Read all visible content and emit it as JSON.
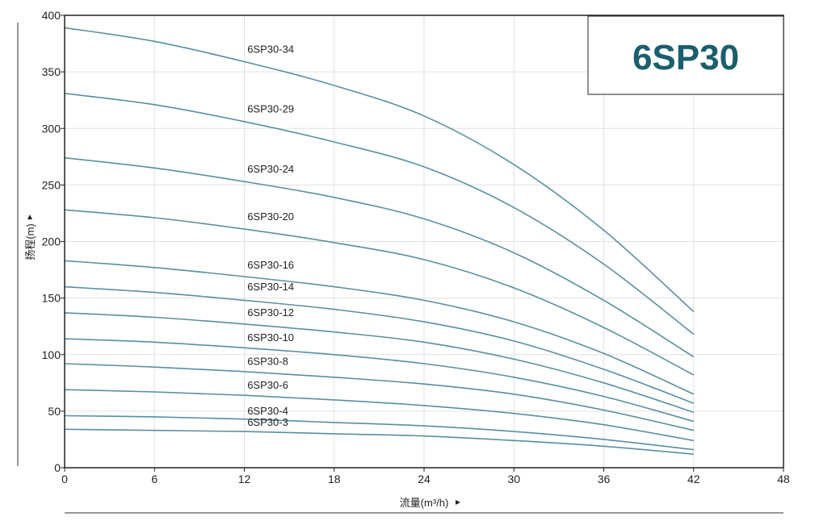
{
  "chart_data": {
    "type": "line",
    "title": "6SP30",
    "xlabel": "流量(m³/h)",
    "ylabel": "扬程(m)",
    "xlim": [
      0,
      48
    ],
    "ylim": [
      0,
      400
    ],
    "x_ticks": [
      0,
      6,
      12,
      18,
      24,
      30,
      36,
      42,
      48
    ],
    "y_ticks": [
      0,
      50,
      100,
      150,
      200,
      250,
      300,
      350,
      400
    ],
    "grid": true,
    "colors": {
      "line": "#5a8fa0",
      "grid": "#e0e0e0",
      "axis": "#222222",
      "title": "#1b5e6e"
    },
    "x": [
      0,
      6,
      12,
      18,
      24,
      30,
      36,
      42
    ],
    "series": [
      {
        "name": "6SP30-34",
        "values": [
          389,
          377,
          359,
          338,
          311,
          268,
          210,
          138
        ]
      },
      {
        "name": "6SP30-29",
        "values": [
          331,
          321,
          306,
          288,
          266,
          230,
          180,
          118
        ]
      },
      {
        "name": "6SP30-24",
        "values": [
          274,
          265,
          253,
          239,
          220,
          190,
          148,
          98
        ]
      },
      {
        "name": "6SP30-20",
        "values": [
          228,
          221,
          211,
          199,
          184,
          159,
          124,
          82
        ]
      },
      {
        "name": "6SP30-16",
        "values": [
          183,
          177,
          169,
          160,
          148,
          129,
          101,
          65
        ]
      },
      {
        "name": "6SP30-14",
        "values": [
          160,
          155,
          148,
          140,
          129,
          112,
          87,
          57
        ]
      },
      {
        "name": "6SP30-12",
        "values": [
          137,
          133,
          127,
          120,
          111,
          96,
          75,
          49
        ]
      },
      {
        "name": "6SP30-10",
        "values": [
          114,
          111,
          106,
          100,
          92,
          80,
          63,
          41
        ]
      },
      {
        "name": "6SP30-8",
        "values": [
          92,
          89,
          85,
          80,
          74,
          65,
          51,
          33
        ]
      },
      {
        "name": "6SP30-6",
        "values": [
          69,
          67,
          64,
          60,
          55,
          48,
          38,
          24
        ]
      },
      {
        "name": "6SP30-4",
        "values": [
          46,
          45,
          43,
          40,
          37,
          32,
          25,
          16
        ]
      },
      {
        "name": "6SP30-3",
        "values": [
          34,
          33,
          32,
          30,
          28,
          24,
          19,
          12
        ]
      }
    ],
    "labels": [
      {
        "text": "6SP30-34",
        "x": 12.2,
        "y": 367
      },
      {
        "text": "6SP30-29",
        "x": 12.2,
        "y": 314
      },
      {
        "text": "6SP30-24",
        "x": 12.2,
        "y": 261
      },
      {
        "text": "6SP30-20",
        "x": 12.2,
        "y": 219
      },
      {
        "text": "6SP30-16",
        "x": 12.2,
        "y": 176
      },
      {
        "text": "6SP30-14",
        "x": 12.2,
        "y": 157
      },
      {
        "text": "6SP30-12",
        "x": 12.2,
        "y": 134
      },
      {
        "text": "6SP30-10",
        "x": 12.2,
        "y": 112
      },
      {
        "text": "6SP30-8",
        "x": 12.2,
        "y": 91
      },
      {
        "text": "6SP30-6",
        "x": 12.2,
        "y": 70
      },
      {
        "text": "6SP30-4",
        "x": 12.2,
        "y": 47
      },
      {
        "text": "6SP30-3",
        "x": 12.2,
        "y": 37
      }
    ]
  }
}
